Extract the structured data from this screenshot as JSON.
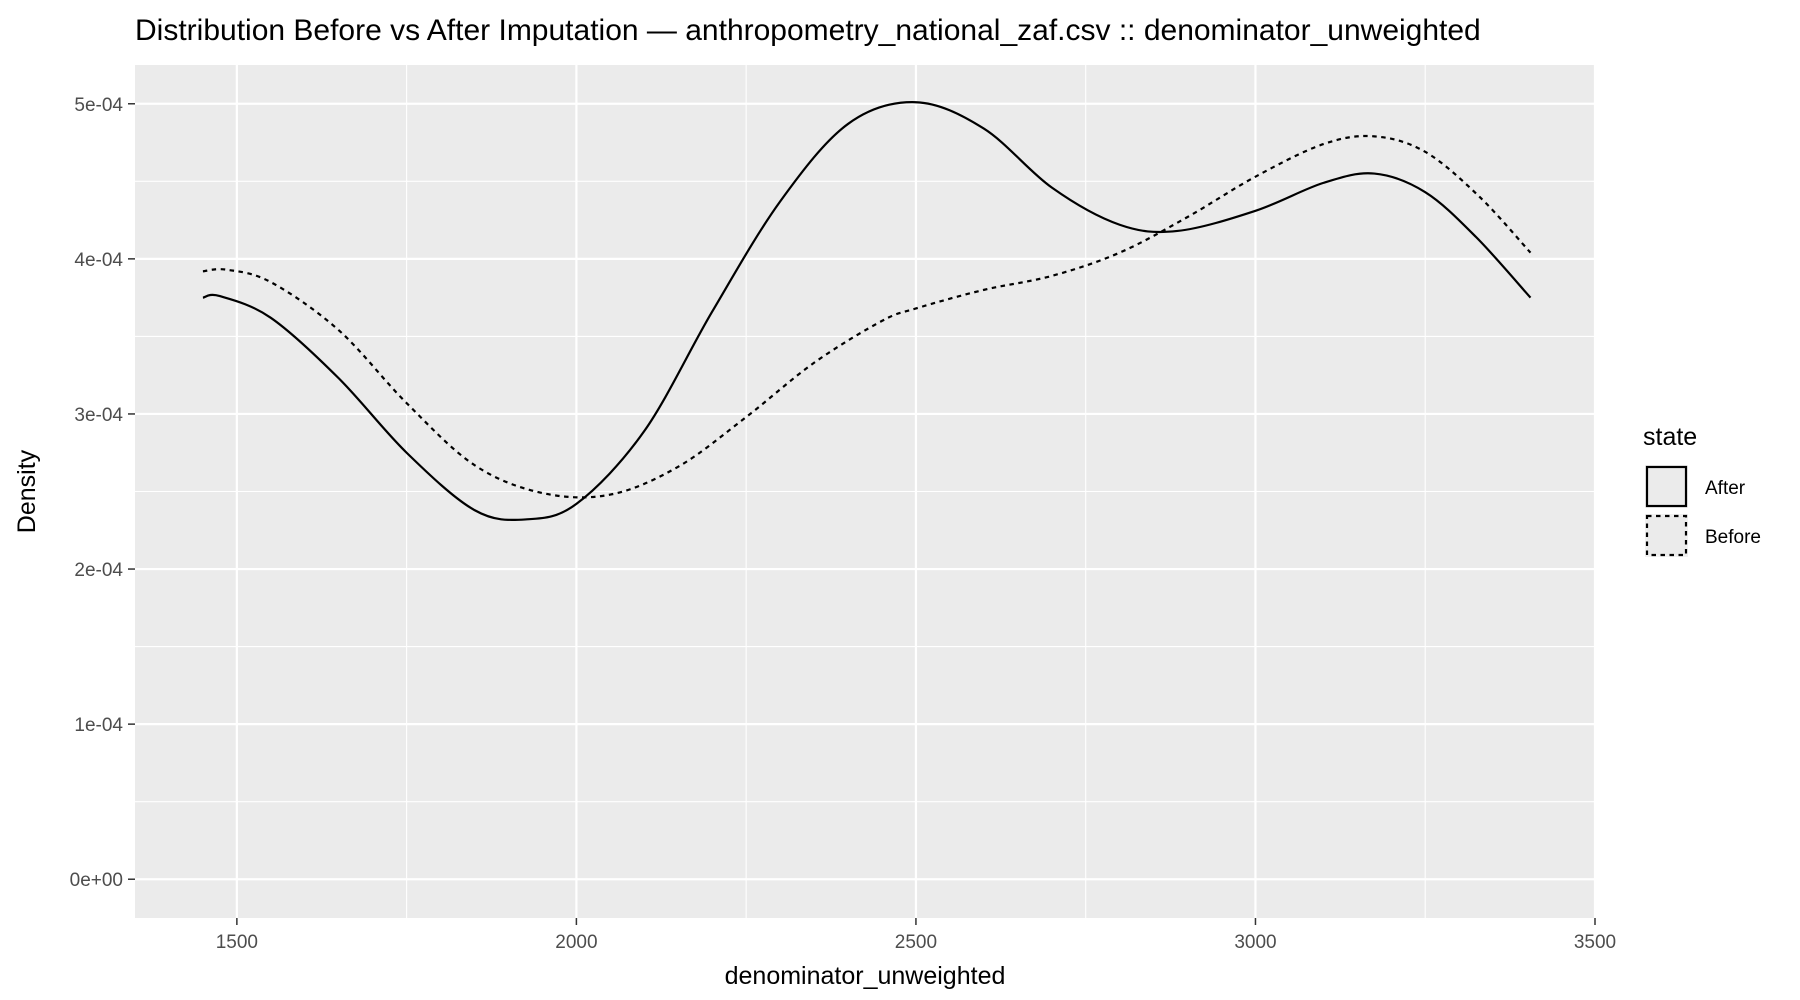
{
  "chart_data": {
    "type": "line",
    "title": "Distribution Before vs After Imputation — anthropometry_national_zaf.csv :: denominator_unweighted",
    "xlabel": "denominator_unweighted",
    "ylabel": "Density",
    "xlim": [
      1350,
      3500
    ],
    "ylim": [
      -2.5e-05,
      0.000525
    ],
    "x_ticks": [
      1500,
      2000,
      2500,
      3000,
      3500
    ],
    "x_tick_labels": [
      "1500",
      "2000",
      "2500",
      "3000",
      "3500"
    ],
    "y_ticks": [
      0,
      0.0001,
      0.0002,
      0.0003,
      0.0004,
      0.0005
    ],
    "y_tick_labels": [
      "0e+00",
      "1e-04",
      "2e-04",
      "3e-04",
      "4e-04",
      "5e-04"
    ],
    "grid": true,
    "legend": {
      "title": "state",
      "position": "right"
    },
    "colors": {
      "panel_background": "#ebebeb",
      "grid_line": "#ffffff",
      "series_line": "#000000",
      "tick_label": "#4d4d4d"
    },
    "series": [
      {
        "name": "After",
        "line_style": "solid",
        "x": [
          1450,
          1475,
          1550,
          1650,
          1750,
          1850,
          1925,
          2000,
          2100,
          2200,
          2300,
          2400,
          2500,
          2600,
          2700,
          2800,
          2885,
          3000,
          3100,
          3175,
          3250,
          3325,
          3405
        ],
        "y": [
          0.000375,
          0.000376,
          0.000362,
          0.000323,
          0.000275,
          0.000238,
          0.000232,
          0.000242,
          0.000289,
          0.000366,
          0.000437,
          0.000487,
          0.000501,
          0.000484,
          0.000446,
          0.000422,
          0.000418,
          0.000431,
          0.000449,
          0.000455,
          0.000443,
          0.000414,
          0.000375
        ]
      },
      {
        "name": "Before",
        "line_style": "dashed",
        "x": [
          1450,
          1485,
          1550,
          1650,
          1750,
          1850,
          1950,
          2050,
          2150,
          2250,
          2350,
          2450,
          2500,
          2600,
          2700,
          2800,
          2900,
          3000,
          3100,
          3175,
          3250,
          3330,
          3405
        ],
        "y": [
          0.000392,
          0.000393,
          0.000385,
          0.000354,
          0.000307,
          0.000267,
          0.000249,
          0.000248,
          0.000266,
          0.000298,
          0.000333,
          0.00036,
          0.000368,
          0.00038,
          0.000389,
          0.000404,
          0.000427,
          0.000453,
          0.000474,
          0.000479,
          0.000469,
          0.00044,
          0.000404
        ]
      }
    ]
  }
}
